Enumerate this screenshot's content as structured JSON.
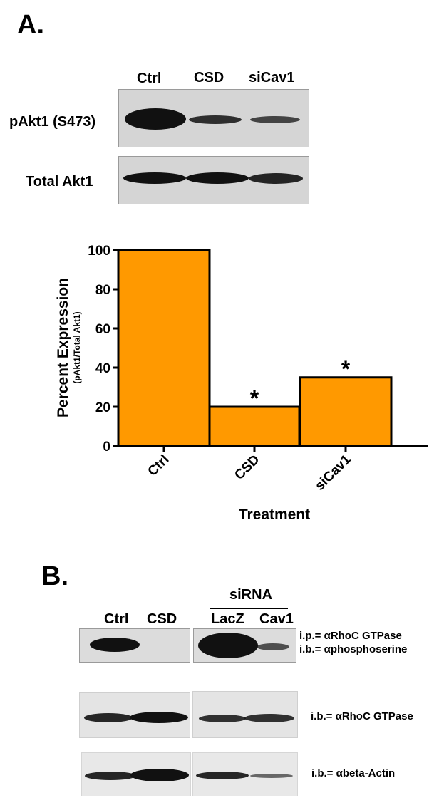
{
  "panel_a": {
    "letter": "A.",
    "lanes": [
      "Ctrl",
      "CSD",
      "siCav1"
    ],
    "blot_rows": [
      {
        "label": "pAkt1 (S473)",
        "band_intensity": [
          1.0,
          0.45,
          0.35
        ]
      },
      {
        "label": "Total Akt1",
        "band_intensity": [
          0.9,
          0.9,
          0.85
        ]
      }
    ]
  },
  "chart_data": {
    "type": "bar",
    "categories": [
      "Ctrl",
      "CSD",
      "siCav1"
    ],
    "values": [
      100,
      20,
      35
    ],
    "annotations": [
      "",
      "*",
      "*"
    ],
    "ylabel": "Percent Expression",
    "ylabel_sub": "(pAkt1/Total Akt1)",
    "xlabel": "Treatment",
    "ylim": [
      0,
      100
    ],
    "yticks": [
      0,
      20,
      40,
      60,
      80,
      100
    ],
    "bar_color": "#ff9900",
    "grid": false
  },
  "panel_b": {
    "letter": "B.",
    "group_label": "siRNA",
    "lanes": [
      "Ctrl",
      "CSD",
      "LacZ",
      "Cav1"
    ],
    "blot_rows": [
      {
        "label_lines": [
          "i.p.= αRhoC GTPase",
          "i.b.= αphosphoserine"
        ],
        "band_intensity": [
          0.85,
          0.0,
          1.0,
          0.4
        ]
      },
      {
        "label_lines": [
          "i.b.= αRhoC GTPase"
        ],
        "band_intensity": [
          0.8,
          0.85,
          0.75,
          0.75
        ]
      },
      {
        "label_lines": [
          "i.b.= αbeta-Actin"
        ],
        "band_intensity": [
          0.8,
          0.9,
          0.75,
          0.4
        ]
      }
    ]
  }
}
